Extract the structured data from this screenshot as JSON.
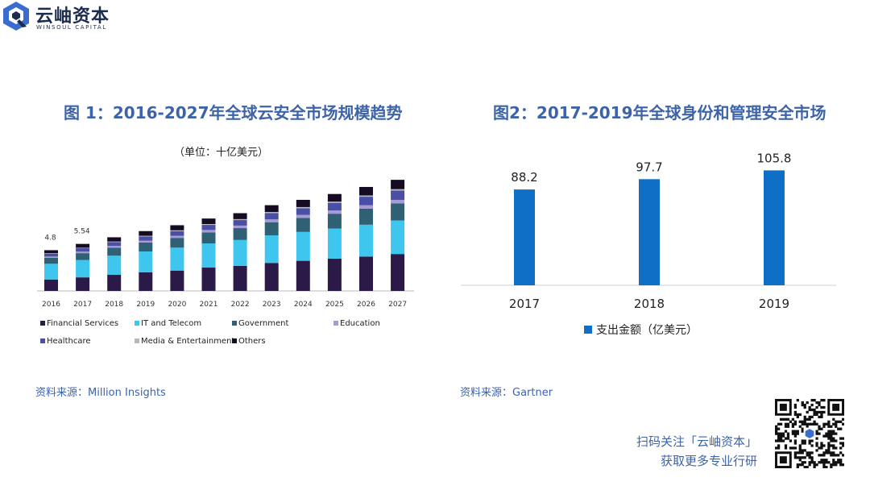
{
  "brand": {
    "name": "云岫资本",
    "sub": "WINSOUL CAPITAL",
    "color": "#1c2c4e"
  },
  "titles": {
    "fig1": "图 1：2016-2027年全球云安全市场规模趋势",
    "fig2": "图2：2017-2019年全球身份和管理安全市场"
  },
  "units": {
    "fig1": "（单位：十亿美元）"
  },
  "sources": {
    "fig1": "资料来源：Million Insights",
    "fig2": "资料来源：Gartner"
  },
  "cta": {
    "line1": "扫码关注「云岫资本」",
    "line2": "获取更多专业行研"
  },
  "colors": {
    "accent": "#3d63a8",
    "bar2": "#0f6fc6"
  },
  "chart_data": [
    {
      "type": "bar",
      "stacked": true,
      "title": "图 1：2016-2027年全球云安全市场规模趋势",
      "unit": "（单位：十亿美元）",
      "categories": [
        "2016",
        "2017",
        "2018",
        "2019",
        "2020",
        "2021",
        "2022",
        "2023",
        "2024",
        "2025",
        "2026",
        "2027"
      ],
      "totals_labeled": [
        {
          "category": "2016",
          "label": "4.8"
        },
        {
          "category": "2017",
          "label": "5.54"
        }
      ],
      "ylim": [
        0,
        15
      ],
      "series": [
        {
          "name": "Financial Services",
          "color": "#2b1a47",
          "values": [
            1.35,
            1.6,
            1.9,
            2.2,
            2.4,
            2.75,
            2.95,
            3.3,
            3.55,
            3.8,
            4.05,
            4.35
          ]
        },
        {
          "name": "IT and Telecom",
          "color": "#3fc6ef",
          "values": [
            1.85,
            2.05,
            2.25,
            2.45,
            2.7,
            2.85,
            3.05,
            3.25,
            3.4,
            3.55,
            3.75,
            3.95
          ]
        },
        {
          "name": "Government",
          "color": "#2f6073",
          "values": [
            0.7,
            0.8,
            0.95,
            1.05,
            1.15,
            1.3,
            1.4,
            1.55,
            1.65,
            1.75,
            1.9,
            2.0
          ]
        },
        {
          "name": "Education",
          "color": "#a59bd6",
          "values": [
            0.15,
            0.18,
            0.2,
            0.22,
            0.25,
            0.28,
            0.3,
            0.33,
            0.35,
            0.38,
            0.4,
            0.43
          ]
        },
        {
          "name": "Healthcare",
          "color": "#4a4fa6",
          "values": [
            0.35,
            0.4,
            0.45,
            0.5,
            0.55,
            0.6,
            0.65,
            0.75,
            0.8,
            0.9,
            1.0,
            1.1
          ]
        },
        {
          "name": "Media & Entertainment",
          "color": "#b7b7bd",
          "values": [
            0.05,
            0.06,
            0.07,
            0.08,
            0.09,
            0.1,
            0.11,
            0.12,
            0.13,
            0.14,
            0.15,
            0.16
          ]
        },
        {
          "name": "Others",
          "color": "#150c24",
          "values": [
            0.35,
            0.45,
            0.5,
            0.55,
            0.6,
            0.65,
            0.7,
            0.8,
            0.85,
            0.9,
            1.0,
            1.1
          ]
        }
      ]
    },
    {
      "type": "bar",
      "title": "图2：2017-2019年全球身份和管理安全市场",
      "categories": [
        "2017",
        "2018",
        "2019"
      ],
      "values": [
        88.2,
        97.7,
        105.8
      ],
      "value_labels": [
        "88.2",
        "97.7",
        "105.8"
      ],
      "legend": "支出金额（亿美元）",
      "ylim": [
        0,
        115
      ]
    }
  ]
}
